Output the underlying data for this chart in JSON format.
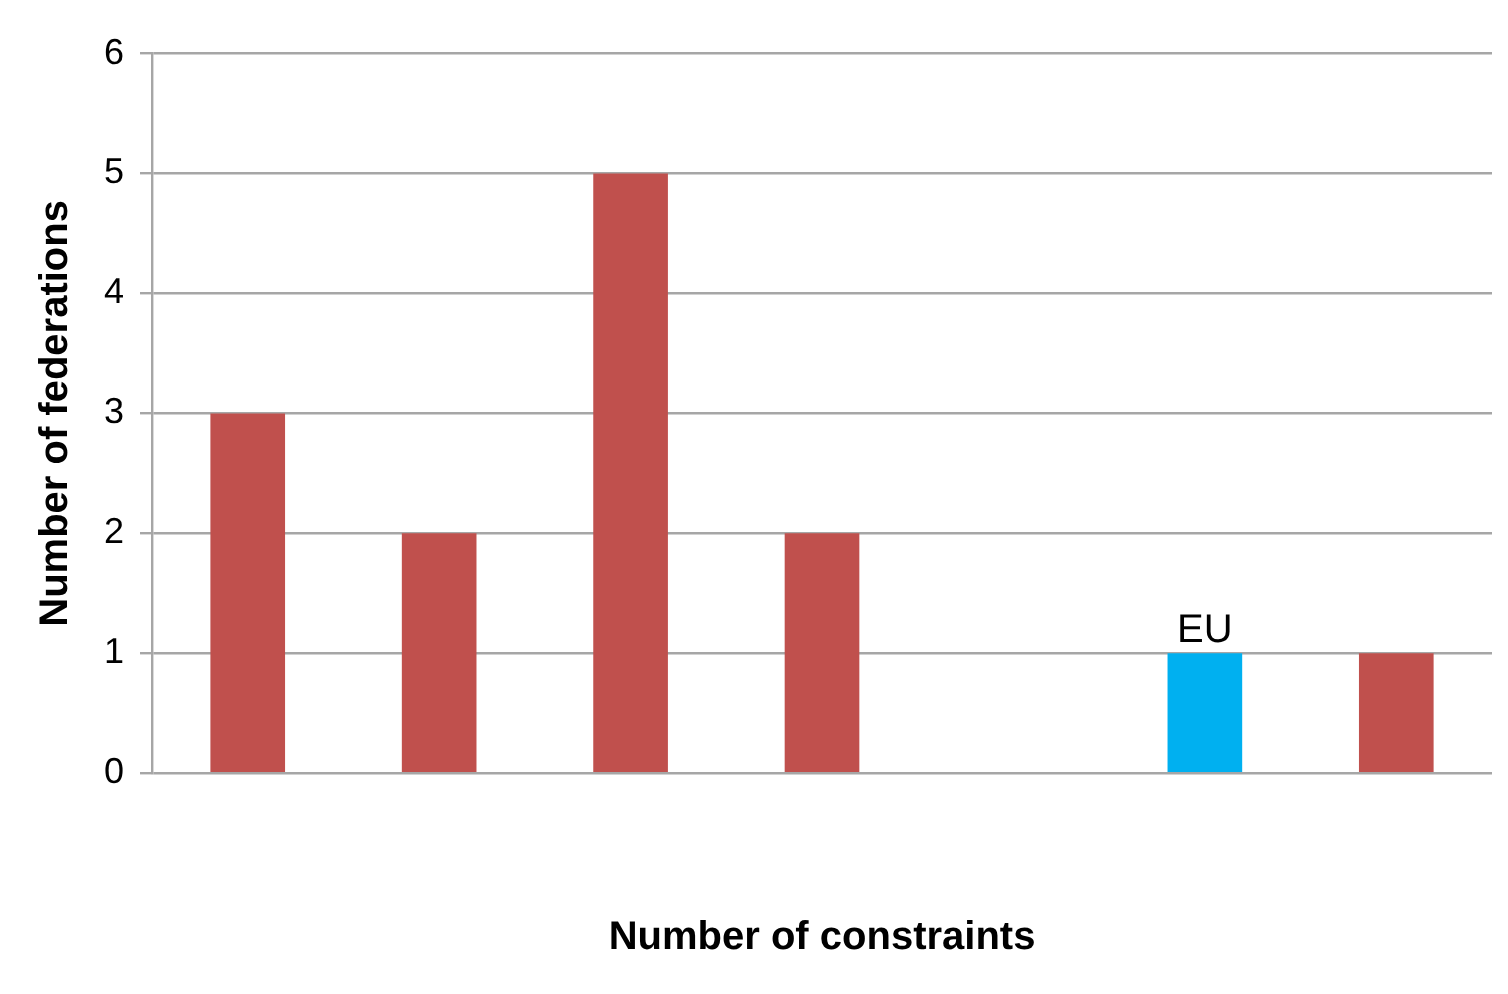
{
  "chart_data": {
    "type": "bar",
    "xlabel": "Number of constraints",
    "ylabel": "Number of federations",
    "categories": [
      null,
      null,
      null,
      null,
      null,
      null,
      null
    ],
    "values": [
      3,
      2,
      5,
      2,
      0,
      1,
      1
    ],
    "colors": [
      "#c0504d",
      "#c0504d",
      "#c0504d",
      "#c0504d",
      "#c0504d",
      "#00b0f0",
      "#c0504d"
    ],
    "value_labels": [
      null,
      null,
      null,
      null,
      null,
      "EU",
      null
    ],
    "ylim": [
      0,
      6
    ],
    "yticks": [
      0,
      1,
      2,
      3,
      4,
      5,
      6
    ],
    "grid": "y",
    "legend": false
  }
}
